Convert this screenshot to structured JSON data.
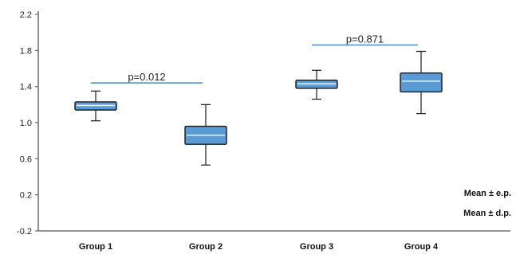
{
  "chart_data": {
    "type": "box",
    "title": "",
    "xlabel": "",
    "ylabel": "",
    "ylim": [
      -0.2,
      2.2
    ],
    "yticks": [
      -0.2,
      0.2,
      0.6,
      1.0,
      1.4,
      1.8,
      2.2
    ],
    "ytick_labels": [
      "-0.2",
      "0.2",
      "0.6",
      "1.0",
      "1.4",
      "1.8",
      "2.2"
    ],
    "grid": false,
    "categories": [
      "Group 1",
      "Group 2",
      "Group 3",
      "Group 4"
    ],
    "boxes": [
      {
        "whisker_low": 1.02,
        "box_low": 1.14,
        "median": 1.19,
        "box_high": 1.23,
        "whisker_high": 1.35
      },
      {
        "whisker_low": 0.53,
        "box_low": 0.76,
        "median": 0.86,
        "box_high": 0.96,
        "whisker_high": 1.2
      },
      {
        "whisker_low": 1.26,
        "box_low": 1.38,
        "median": 1.43,
        "box_high": 1.47,
        "whisker_high": 1.58
      },
      {
        "whisker_low": 1.1,
        "box_low": 1.34,
        "median": 1.46,
        "box_high": 1.55,
        "whisker_high": 1.79
      }
    ],
    "annotations": [
      {
        "text": "p=0.012",
        "from_group": 0,
        "to_group": 1,
        "y": 1.44
      },
      {
        "text": "p=0.871",
        "from_group": 2,
        "to_group": 3,
        "y": 1.86
      }
    ],
    "legend": [
      "Mean ± e.p.",
      "Mean ± d.p."
    ],
    "legend_position": "bottom-right",
    "colors": {
      "box_fill": "#5b9bd5",
      "box_stroke": "#1a1a1a",
      "median_line": "#e8f1fb",
      "annotation_line": "#5b9bd5",
      "axis": "#555555"
    }
  }
}
